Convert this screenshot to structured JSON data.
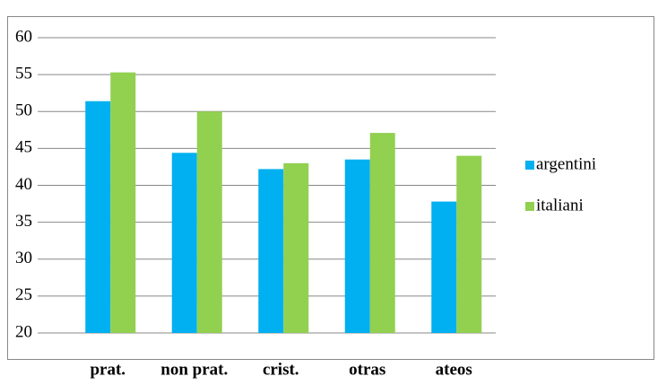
{
  "chart_data": {
    "type": "bar",
    "categories": [
      "prat.",
      "non prat.",
      "crist.",
      "otras",
      "ateos"
    ],
    "series": [
      {
        "name": "argentini",
        "color": "#00b0f0",
        "values": [
          51.4,
          44.4,
          42.2,
          43.5,
          37.8
        ]
      },
      {
        "name": "italiani",
        "color": "#92d050",
        "values": [
          55.3,
          50.0,
          43.0,
          47.1,
          44.0
        ]
      }
    ],
    "ylim": [
      20,
      60
    ],
    "yticks": [
      20,
      25,
      30,
      35,
      40,
      45,
      50,
      55,
      60
    ],
    "grid": true,
    "legend": "right"
  }
}
